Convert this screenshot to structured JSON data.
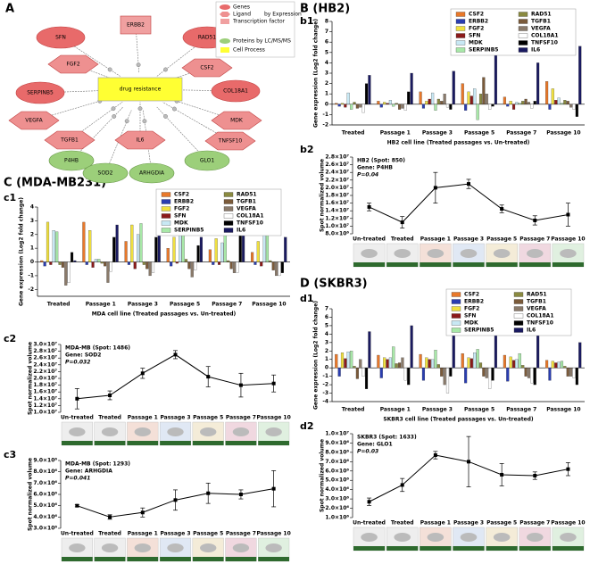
{
  "panel_headings": [
    "A",
    "B (HB2)",
    "C (MDA-MB231)",
    "D (SKBR3)"
  ],
  "diagram": {
    "center": "drug resistance",
    "nodes": [
      "SFN",
      "ERBB2",
      "RAD51",
      "FGF2",
      "CSF2",
      "SERPINB5",
      "COL18A1",
      "VEGFA",
      "MDK",
      "TGFB1",
      "IL6",
      "TNFSF10",
      "P4HB",
      "SOD2",
      "ARHGDIA",
      "GLO1"
    ],
    "legend": [
      "Genes",
      "Ligand",
      "Transcription factor",
      "by Expression",
      "Proteins by LC/MS/MS",
      "Cell Process"
    ]
  },
  "chart_data": [
    {
      "type": "bar",
      "panel": "b1",
      "ylabel": "Gene expression (Log2 fold change)",
      "xlabel": "HB2 cell line (Treated passages vs. Un-treated)",
      "categories": [
        "Treated",
        "Passage 1",
        "Passage 3",
        "Passage 5",
        "Passage 7",
        "Passage 10"
      ],
      "ylim": [
        -2,
        8
      ],
      "yticks": [
        -2,
        -1,
        0,
        1,
        2,
        3,
        4,
        5,
        6,
        7,
        8
      ],
      "series": [
        {
          "name": "CSF2",
          "color": "#e8782a",
          "values": [
            0.1,
            0.3,
            1.2,
            2.0,
            0.7,
            2.2
          ]
        },
        {
          "name": "ERBB2",
          "color": "#2a3db0",
          "values": [
            -0.2,
            -0.3,
            -0.4,
            -0.6,
            -0.2,
            -0.5
          ]
        },
        {
          "name": "FGF2",
          "color": "#f0e040",
          "values": [
            0.1,
            0.2,
            0.3,
            1.2,
            0.3,
            1.5
          ]
        },
        {
          "name": "SFN",
          "color": "#8b1a1a",
          "values": [
            -0.3,
            0.1,
            0.5,
            0.8,
            -0.5,
            0.4
          ]
        },
        {
          "name": "MDK",
          "color": "#c8e8f4",
          "values": [
            1.1,
            0.4,
            1.1,
            1.5,
            0.2,
            0.6
          ]
        },
        {
          "name": "SERPINB5",
          "color": "#a8e8a8",
          "values": [
            -0.5,
            -0.2,
            -0.6,
            -1.5,
            0.1,
            0.1
          ]
        },
        {
          "name": "RAD51",
          "color": "#8a8a40",
          "values": [
            0.2,
            0.1,
            0.5,
            1.0,
            0.3,
            0.4
          ]
        },
        {
          "name": "TGFB1",
          "color": "#7a5a3a",
          "values": [
            -0.4,
            -0.5,
            0.3,
            2.6,
            0.5,
            0.3
          ]
        },
        {
          "name": "VEGFA",
          "color": "#8a7a6a",
          "values": [
            -0.3,
            -0.4,
            1.0,
            1.0,
            0.2,
            -0.3
          ]
        },
        {
          "name": "COL18A1",
          "color": "#ffffff",
          "values": [
            -0.8,
            -0.6,
            -0.3,
            -0.5,
            -0.4,
            -0.5
          ]
        },
        {
          "name": "TNFSF10",
          "color": "#000000",
          "values": [
            2.0,
            1.2,
            -0.5,
            -0.2,
            0.3,
            -1.2
          ]
        },
        {
          "name": "IL6",
          "color": "#1a1a60",
          "values": [
            2.8,
            3.0,
            3.2,
            7.3,
            4.0,
            5.6
          ]
        }
      ]
    },
    {
      "type": "line",
      "title": "HB2 (Spot: 850)",
      "gene": "Gene: P4HB",
      "pvalue": "P=0.04",
      "panel": "b2",
      "ylabel": "Spot normalized volume",
      "categories": [
        "Un-treated",
        "Treated",
        "Passage 1",
        "Passage 3",
        "Passage 5",
        "Passage 7",
        "Passage 10"
      ],
      "values": [
        15000000,
        11000000,
        20000000,
        21000000,
        14500000,
        11500000,
        13000000
      ],
      "errors": [
        1000000,
        1500000,
        4000000,
        1200000,
        1000000,
        1200000,
        3000000
      ],
      "color": "#000000",
      "ylim": [
        8000000,
        28000000
      ],
      "yticks": [
        {
          "value": 8000000,
          "label": "8.0×10⁶"
        },
        {
          "value": 10000000,
          "label": "1.0×10⁷"
        },
        {
          "value": 12000000,
          "label": "1.2×10⁷"
        },
        {
          "value": 14000000,
          "label": "1.4×10⁷"
        },
        {
          "value": 16000000,
          "label": "1.6×10⁷"
        },
        {
          "value": 18000000,
          "label": "1.8×10⁷"
        },
        {
          "value": 20000000,
          "label": "2.0×10⁷"
        },
        {
          "value": 22000000,
          "label": "2.2×10⁷"
        },
        {
          "value": 24000000,
          "label": "2.4×10⁷"
        },
        {
          "value": 26000000,
          "label": "2.6×10⁷"
        },
        {
          "value": 28000000,
          "label": "2.8×10⁷"
        }
      ]
    },
    {
      "type": "bar",
      "panel": "c1",
      "ylabel": "Gene expression (Log2 fold change)",
      "xlabel": "MDA cell line (Treated passages vs. Un-treated)",
      "categories": [
        "Treated",
        "Passage 1",
        "Passage 3",
        "Passage 5",
        "Passage 7",
        "Passage 10"
      ],
      "ylim": [
        -2.5,
        4
      ],
      "yticks": [
        -2,
        -1,
        0,
        1,
        2,
        3,
        4
      ],
      "series": [
        {
          "name": "CSF2",
          "color": "#e8782a",
          "values": [
            0.1,
            2.9,
            1.5,
            1.0,
            0.9,
            0.7
          ]
        },
        {
          "name": "ERBB2",
          "color": "#2a3db0",
          "values": [
            -0.3,
            -0.2,
            -0.2,
            -0.3,
            -0.2,
            -0.2
          ]
        },
        {
          "name": "FGF2",
          "color": "#f0e040",
          "values": [
            2.9,
            2.3,
            2.7,
            1.8,
            1.7,
            1.5
          ]
        },
        {
          "name": "SFN",
          "color": "#8b1a1a",
          "values": [
            -0.2,
            -0.4,
            -0.5,
            -0.1,
            -0.2,
            -0.3
          ]
        },
        {
          "name": "MDK",
          "color": "#c8e8f4",
          "values": [
            2.3,
            0.2,
            2.0,
            2.7,
            1.4,
            2.9
          ]
        },
        {
          "name": "SERPINB5",
          "color": "#a8e8a8",
          "values": [
            2.2,
            0.2,
            2.8,
            3.5,
            3.0,
            3.1
          ]
        },
        {
          "name": "RAD51",
          "color": "#8a8a40",
          "values": [
            -0.2,
            -0.1,
            -0.2,
            0.2,
            0.1,
            0.1
          ]
        },
        {
          "name": "TGFB1",
          "color": "#7a5a3a",
          "values": [
            -0.4,
            -0.3,
            -0.5,
            -0.5,
            -0.5,
            -0.6
          ]
        },
        {
          "name": "VEGFA",
          "color": "#8a7a6a",
          "values": [
            -1.7,
            -1.5,
            -1.0,
            -1.1,
            -0.8,
            -1.0
          ]
        },
        {
          "name": "COL18A1",
          "color": "#ffffff",
          "values": [
            -1.5,
            -0.7,
            -0.8,
            -0.6,
            -0.8,
            -1.0
          ]
        },
        {
          "name": "TNFSF10",
          "color": "#000000",
          "values": [
            0.7,
            1.8,
            1.8,
            1.2,
            2.1,
            -0.8
          ]
        },
        {
          "name": "IL6",
          "color": "#1a1a60",
          "values": [
            0.1,
            2.7,
            2.3,
            1.8,
            2.2,
            1.8
          ]
        }
      ]
    },
    {
      "type": "line",
      "title": "MDA-MB (Spot: 1486)",
      "gene": "Gene: SOD2",
      "pvalue": "P=0.032",
      "panel": "c2",
      "ylabel": "Spot normalized volume",
      "categories": [
        "Un-treated",
        "Treated",
        "Passage 1",
        "Passage 3",
        "Passage 5",
        "Passage 7",
        "Passage 10"
      ],
      "values": [
        14000000,
        15000000,
        21500000,
        27000000,
        20500000,
        18000000,
        18500000
      ],
      "errors": [
        3000000,
        1300000,
        1500000,
        1200000,
        3000000,
        3500000,
        2500000
      ],
      "color": "#000000",
      "ylim": [
        10000000,
        30000000
      ],
      "yticks": [
        {
          "value": 10000000,
          "label": "1.0×10⁷"
        },
        {
          "value": 12000000,
          "label": "1.2×10⁷"
        },
        {
          "value": 14000000,
          "label": "1.4×10⁷"
        },
        {
          "value": 16000000,
          "label": "1.6×10⁷"
        },
        {
          "value": 18000000,
          "label": "1.8×10⁷"
        },
        {
          "value": 20000000,
          "label": "2.0×10⁷"
        },
        {
          "value": 22000000,
          "label": "2.2×10⁷"
        },
        {
          "value": 24000000,
          "label": "2.4×10⁷"
        },
        {
          "value": 26000000,
          "label": "2.6×10⁷"
        },
        {
          "value": 28000000,
          "label": "2.8×10⁷"
        },
        {
          "value": 30000000,
          "label": "3.0×10⁷"
        }
      ]
    },
    {
      "type": "line",
      "title": "MDA-MB (Spot: 1293)",
      "gene": "Gene: ARHGDIA",
      "pvalue": "P=0.041",
      "panel": "c3",
      "ylabel": "Spot normalized volume",
      "categories": [
        "Un-treated",
        "Treated",
        "Passage 1",
        "Passage 3",
        "Passage 5",
        "Passage 7",
        "Passage 10"
      ],
      "values": [
        5000000,
        4000000,
        4400000,
        5500000,
        6100000,
        6000000,
        6500000
      ],
      "errors": [
        100000,
        200000,
        400000,
        900000,
        900000,
        400000,
        1600000
      ],
      "color": "#000000",
      "ylim": [
        3000000,
        9000000
      ],
      "yticks": [
        {
          "value": 3000000,
          "label": "3.0×10⁶"
        },
        {
          "value": 4000000,
          "label": "4.0×10⁶"
        },
        {
          "value": 5000000,
          "label": "5.0×10⁶"
        },
        {
          "value": 6000000,
          "label": "6.0×10⁶"
        },
        {
          "value": 7000000,
          "label": "7.0×10⁶"
        },
        {
          "value": 8000000,
          "label": "8.0×10⁶"
        },
        {
          "value": 9000000,
          "label": "9.0×10⁶"
        }
      ]
    },
    {
      "type": "bar",
      "panel": "d1",
      "ylabel": "Gene expression (Log2 fold change)",
      "xlabel": "SKBR3 cell line (Treated passages vs. Un-treated)",
      "categories": [
        "Treated",
        "Passage 1",
        "Passage 3",
        "Passage 5",
        "Passage 7",
        "Passage 10"
      ],
      "ylim": [
        -4,
        7
      ],
      "yticks": [
        -4,
        -3,
        -2,
        -1,
        0,
        1,
        2,
        3,
        4,
        5,
        6,
        7
      ],
      "series": [
        {
          "name": "CSF2",
          "color": "#e8782a",
          "values": [
            1.6,
            1.5,
            1.6,
            1.7,
            1.5,
            0.9
          ]
        },
        {
          "name": "ERBB2",
          "color": "#2a3db0",
          "values": [
            -1.0,
            -1.2,
            -1.5,
            -1.8,
            -1.6,
            -1.5
          ]
        },
        {
          "name": "FGF2",
          "color": "#f0e040",
          "values": [
            1.8,
            1.2,
            1.2,
            1.2,
            1.3,
            0.8
          ]
        },
        {
          "name": "SFN",
          "color": "#8b1a1a",
          "values": [
            1.1,
            1.0,
            1.0,
            1.1,
            0.9,
            0.6
          ]
        },
        {
          "name": "MDK",
          "color": "#c8e8f4",
          "values": [
            1.9,
            1.2,
            1.0,
            1.8,
            1.0,
            0.7
          ]
        },
        {
          "name": "SERPINB5",
          "color": "#a8e8a8",
          "values": [
            2.0,
            2.5,
            2.1,
            2.2,
            1.7,
            0.8
          ]
        },
        {
          "name": "RAD51",
          "color": "#8a8a40",
          "values": [
            0.2,
            0.5,
            0.4,
            0.6,
            0.3,
            0.2
          ]
        },
        {
          "name": "TGFB1",
          "color": "#7a5a3a",
          "values": [
            -1.3,
            0.6,
            -1.0,
            -1.0,
            -1.0,
            -1.0
          ]
        },
        {
          "name": "VEGFA",
          "color": "#8a7a6a",
          "values": [
            1.0,
            1.2,
            -2.0,
            -1.2,
            -1.2,
            -1.0
          ]
        },
        {
          "name": "COL18A1",
          "color": "#ffffff",
          "values": [
            -1.0,
            -1.5,
            -3.0,
            -2.5,
            -1.8,
            -1.2
          ]
        },
        {
          "name": "TNFSF10",
          "color": "#000000",
          "values": [
            -2.5,
            -2.0,
            -1.0,
            -1.5,
            -2.0,
            -2.0
          ]
        },
        {
          "name": "IL6",
          "color": "#1a1a60",
          "values": [
            4.3,
            5.0,
            6.5,
            7.0,
            4.3,
            3.0
          ]
        }
      ]
    },
    {
      "type": "line",
      "title": "SKBR3 (Spot: 1633)",
      "gene": "Gene: GLO1",
      "pvalue": "P=0.03",
      "panel": "d2",
      "ylabel": "Spot normalized volume",
      "categories": [
        "Un-treated",
        "Treated",
        "Passage 1",
        "Passage 3",
        "Passage 5",
        "Passage 7",
        "Passage 10"
      ],
      "values": [
        2700000,
        4500000,
        7700000,
        7000000,
        5600000,
        5500000,
        6200000
      ],
      "errors": [
        400000,
        700000,
        400000,
        2700000,
        1200000,
        400000,
        700000
      ],
      "color": "#000000",
      "ylim": [
        1000000,
        10000000
      ],
      "yticks": [
        {
          "value": 1000000,
          "label": "1.0×10⁶"
        },
        {
          "value": 2000000,
          "label": "2.0×10⁶"
        },
        {
          "value": 3000000,
          "label": "3.0×10⁶"
        },
        {
          "value": 4000000,
          "label": "4.0×10⁶"
        },
        {
          "value": 5000000,
          "label": "5.0×10⁶"
        },
        {
          "value": 6000000,
          "label": "6.0×10⁶"
        },
        {
          "value": 7000000,
          "label": "7.0×10⁶"
        },
        {
          "value": 8000000,
          "label": "8.0×10⁶"
        },
        {
          "value": 9000000,
          "label": "9.0×10⁶"
        },
        {
          "value": 10000000,
          "label": "1.0×10⁷"
        }
      ]
    }
  ]
}
